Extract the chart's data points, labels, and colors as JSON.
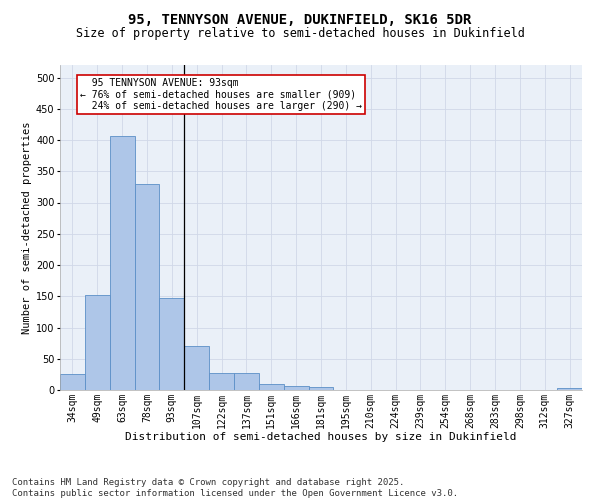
{
  "title1": "95, TENNYSON AVENUE, DUKINFIELD, SK16 5DR",
  "title2": "Size of property relative to semi-detached houses in Dukinfield",
  "xlabel": "Distribution of semi-detached houses by size in Dukinfield",
  "ylabel": "Number of semi-detached properties",
  "categories": [
    "34sqm",
    "49sqm",
    "63sqm",
    "78sqm",
    "93sqm",
    "107sqm",
    "122sqm",
    "137sqm",
    "151sqm",
    "166sqm",
    "181sqm",
    "195sqm",
    "210sqm",
    "224sqm",
    "239sqm",
    "254sqm",
    "268sqm",
    "283sqm",
    "298sqm",
    "312sqm",
    "327sqm"
  ],
  "values": [
    25,
    152,
    407,
    330,
    147,
    70,
    28,
    28,
    10,
    7,
    5,
    0,
    0,
    0,
    0,
    0,
    0,
    0,
    0,
    0,
    3
  ],
  "bar_color": "#aec6e8",
  "bar_edge_color": "#5b8fc7",
  "vline_index": 4,
  "vline_label": "95 TENNYSON AVENUE: 93sqm",
  "pct_smaller": 76,
  "count_smaller": 909,
  "pct_larger": 24,
  "count_larger": 290,
  "annotation_box_color": "#ffffff",
  "annotation_box_edge": "#cc0000",
  "footer": "Contains HM Land Registry data © Crown copyright and database right 2025.\nContains public sector information licensed under the Open Government Licence v3.0.",
  "ylim": [
    0,
    520
  ],
  "yticks": [
    0,
    50,
    100,
    150,
    200,
    250,
    300,
    350,
    400,
    450,
    500
  ],
  "grid_color": "#d0d8e8",
  "background_color": "#eaf0f8",
  "title1_fontsize": 10,
  "title2_fontsize": 8.5,
  "xlabel_fontsize": 8,
  "ylabel_fontsize": 7.5,
  "tick_fontsize": 7,
  "footer_fontsize": 6.5,
  "ann_fontsize": 7
}
